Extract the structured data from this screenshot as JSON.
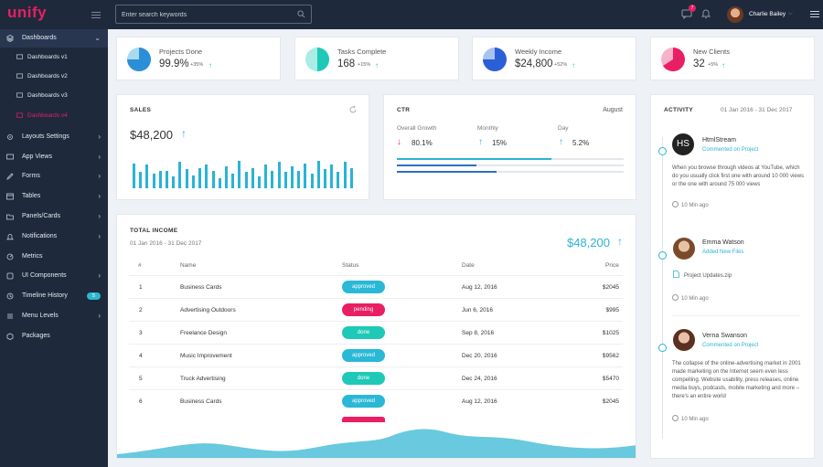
{
  "header": {
    "brand": "unify",
    "search_placeholder": "Enter search keywords",
    "notification_count": "7",
    "user_name": "Charlie Bailey"
  },
  "sidebar": {
    "items": [
      {
        "label": "Dashboards",
        "icon": "layers-icon"
      },
      {
        "label": "Layouts Settings",
        "icon": "gear-icon"
      },
      {
        "label": "App Views",
        "icon": "monitor-icon"
      },
      {
        "label": "Forms",
        "icon": "pencil-icon"
      },
      {
        "label": "Tables",
        "icon": "table-icon"
      },
      {
        "label": "Panels/Cards",
        "icon": "folder-icon"
      },
      {
        "label": "Notifications",
        "icon": "bell-icon"
      },
      {
        "label": "Metrics",
        "icon": "metrics-icon"
      },
      {
        "label": "UI Components",
        "icon": "puzzle-icon"
      },
      {
        "label": "Timeline History",
        "icon": "clock-icon",
        "badge": "5"
      },
      {
        "label": "Menu Levels",
        "icon": "menu-icon"
      },
      {
        "label": "Packages",
        "icon": "package-icon"
      }
    ],
    "sub_items": [
      {
        "label": "Dashboards v1"
      },
      {
        "label": "Dashboards v2"
      },
      {
        "label": "Dashboards v3"
      },
      {
        "label": "Dashboards v4"
      }
    ]
  },
  "stats": [
    {
      "label": "Projects Done",
      "value": "99.9%",
      "change": "+35%",
      "color": "#2b8fd8",
      "fraction": 0.75
    },
    {
      "label": "Tasks Complete",
      "value": "168",
      "change": "+15%",
      "color": "#1ec9b7",
      "fraction": 0.55
    },
    {
      "label": "Weekly Income",
      "value": "$24,800",
      "change": "+52%",
      "color": "#2b5fd8",
      "fraction": 0.7
    },
    {
      "label": "New Clients",
      "value": "32",
      "change": "+5%",
      "color": "#e91e63",
      "fraction": 0.6
    }
  ],
  "sales": {
    "title": "SALES",
    "value": "$48,200",
    "bars": [
      0.85,
      0.55,
      0.8,
      0.5,
      0.6,
      0.6,
      0.4,
      0.9,
      0.65,
      0.45,
      0.7,
      0.8,
      0.6,
      0.35,
      0.75,
      0.5,
      0.95,
      0.55,
      0.7,
      0.4,
      0.8,
      0.6,
      0.9,
      0.55,
      0.75,
      0.6,
      0.85,
      0.5,
      0.95,
      0.65,
      0.8,
      0.55,
      0.9,
      0.7
    ]
  },
  "ctr": {
    "title": "CTR",
    "month": "August",
    "metrics": [
      {
        "label": "Overall Growth",
        "value": "80.1%",
        "dir": "down"
      },
      {
        "label": "Monthly",
        "value": "15%",
        "dir": "up"
      },
      {
        "label": "Day",
        "value": "5.2%",
        "dir": "up"
      }
    ],
    "progress": [
      0.68,
      0.35,
      0.44
    ]
  },
  "income": {
    "title": "TOTAL INCOME",
    "date_range": "01 Jan 2016 - 31 Dec 2017",
    "value": "$48,200",
    "columns": [
      "#",
      "Name",
      "Status",
      "Date",
      "Price"
    ],
    "rows": [
      {
        "num": "1",
        "name": "Business Cards",
        "status": "approved",
        "date": "Aug 12, 2016",
        "price": "$2045"
      },
      {
        "num": "2",
        "name": "Advertising Outdoors",
        "status": "pending",
        "date": "Jun 6, 2016",
        "price": "$995"
      },
      {
        "num": "3",
        "name": "Freelance Design",
        "status": "done",
        "date": "Sep 8, 2016",
        "price": "$1025"
      },
      {
        "num": "4",
        "name": "Music Improvement",
        "status": "approved",
        "date": "Dec 20, 2016",
        "price": "$9562"
      },
      {
        "num": "5",
        "name": "Truck Advertising",
        "status": "done",
        "date": "Dec 24, 2016",
        "price": "$5470"
      },
      {
        "num": "6",
        "name": "Business Cards",
        "status": "approved",
        "date": "Aug 12, 2016",
        "price": "$2045"
      }
    ]
  },
  "activity": {
    "title": "ACTIVITY",
    "date_range": "01 Jan 2016 - 31 Dec 2017",
    "items": [
      {
        "initials": "HS",
        "name": "HtmlStream",
        "action": "Commented on Project",
        "text": "When you browse through videos at YouTube, which do you usually click first one with around 10 000 views or the one with around 75 000 views",
        "time": "10 Min ago"
      },
      {
        "initials": "",
        "name": "Emma Watson",
        "action": "Added New Files",
        "file": "Project Updates.zip",
        "time": "10 Min ago"
      },
      {
        "initials": "",
        "name": "Verna Swanson",
        "action": "Commented on Project",
        "text": "The collapse of the online-advertising market in 2001 made marketing on the Internet seem even less compelling. Website usability, press releases, online media buys, podcasts, mobile marketing and more – there's an entire world",
        "time": "10 Min ago"
      }
    ]
  }
}
